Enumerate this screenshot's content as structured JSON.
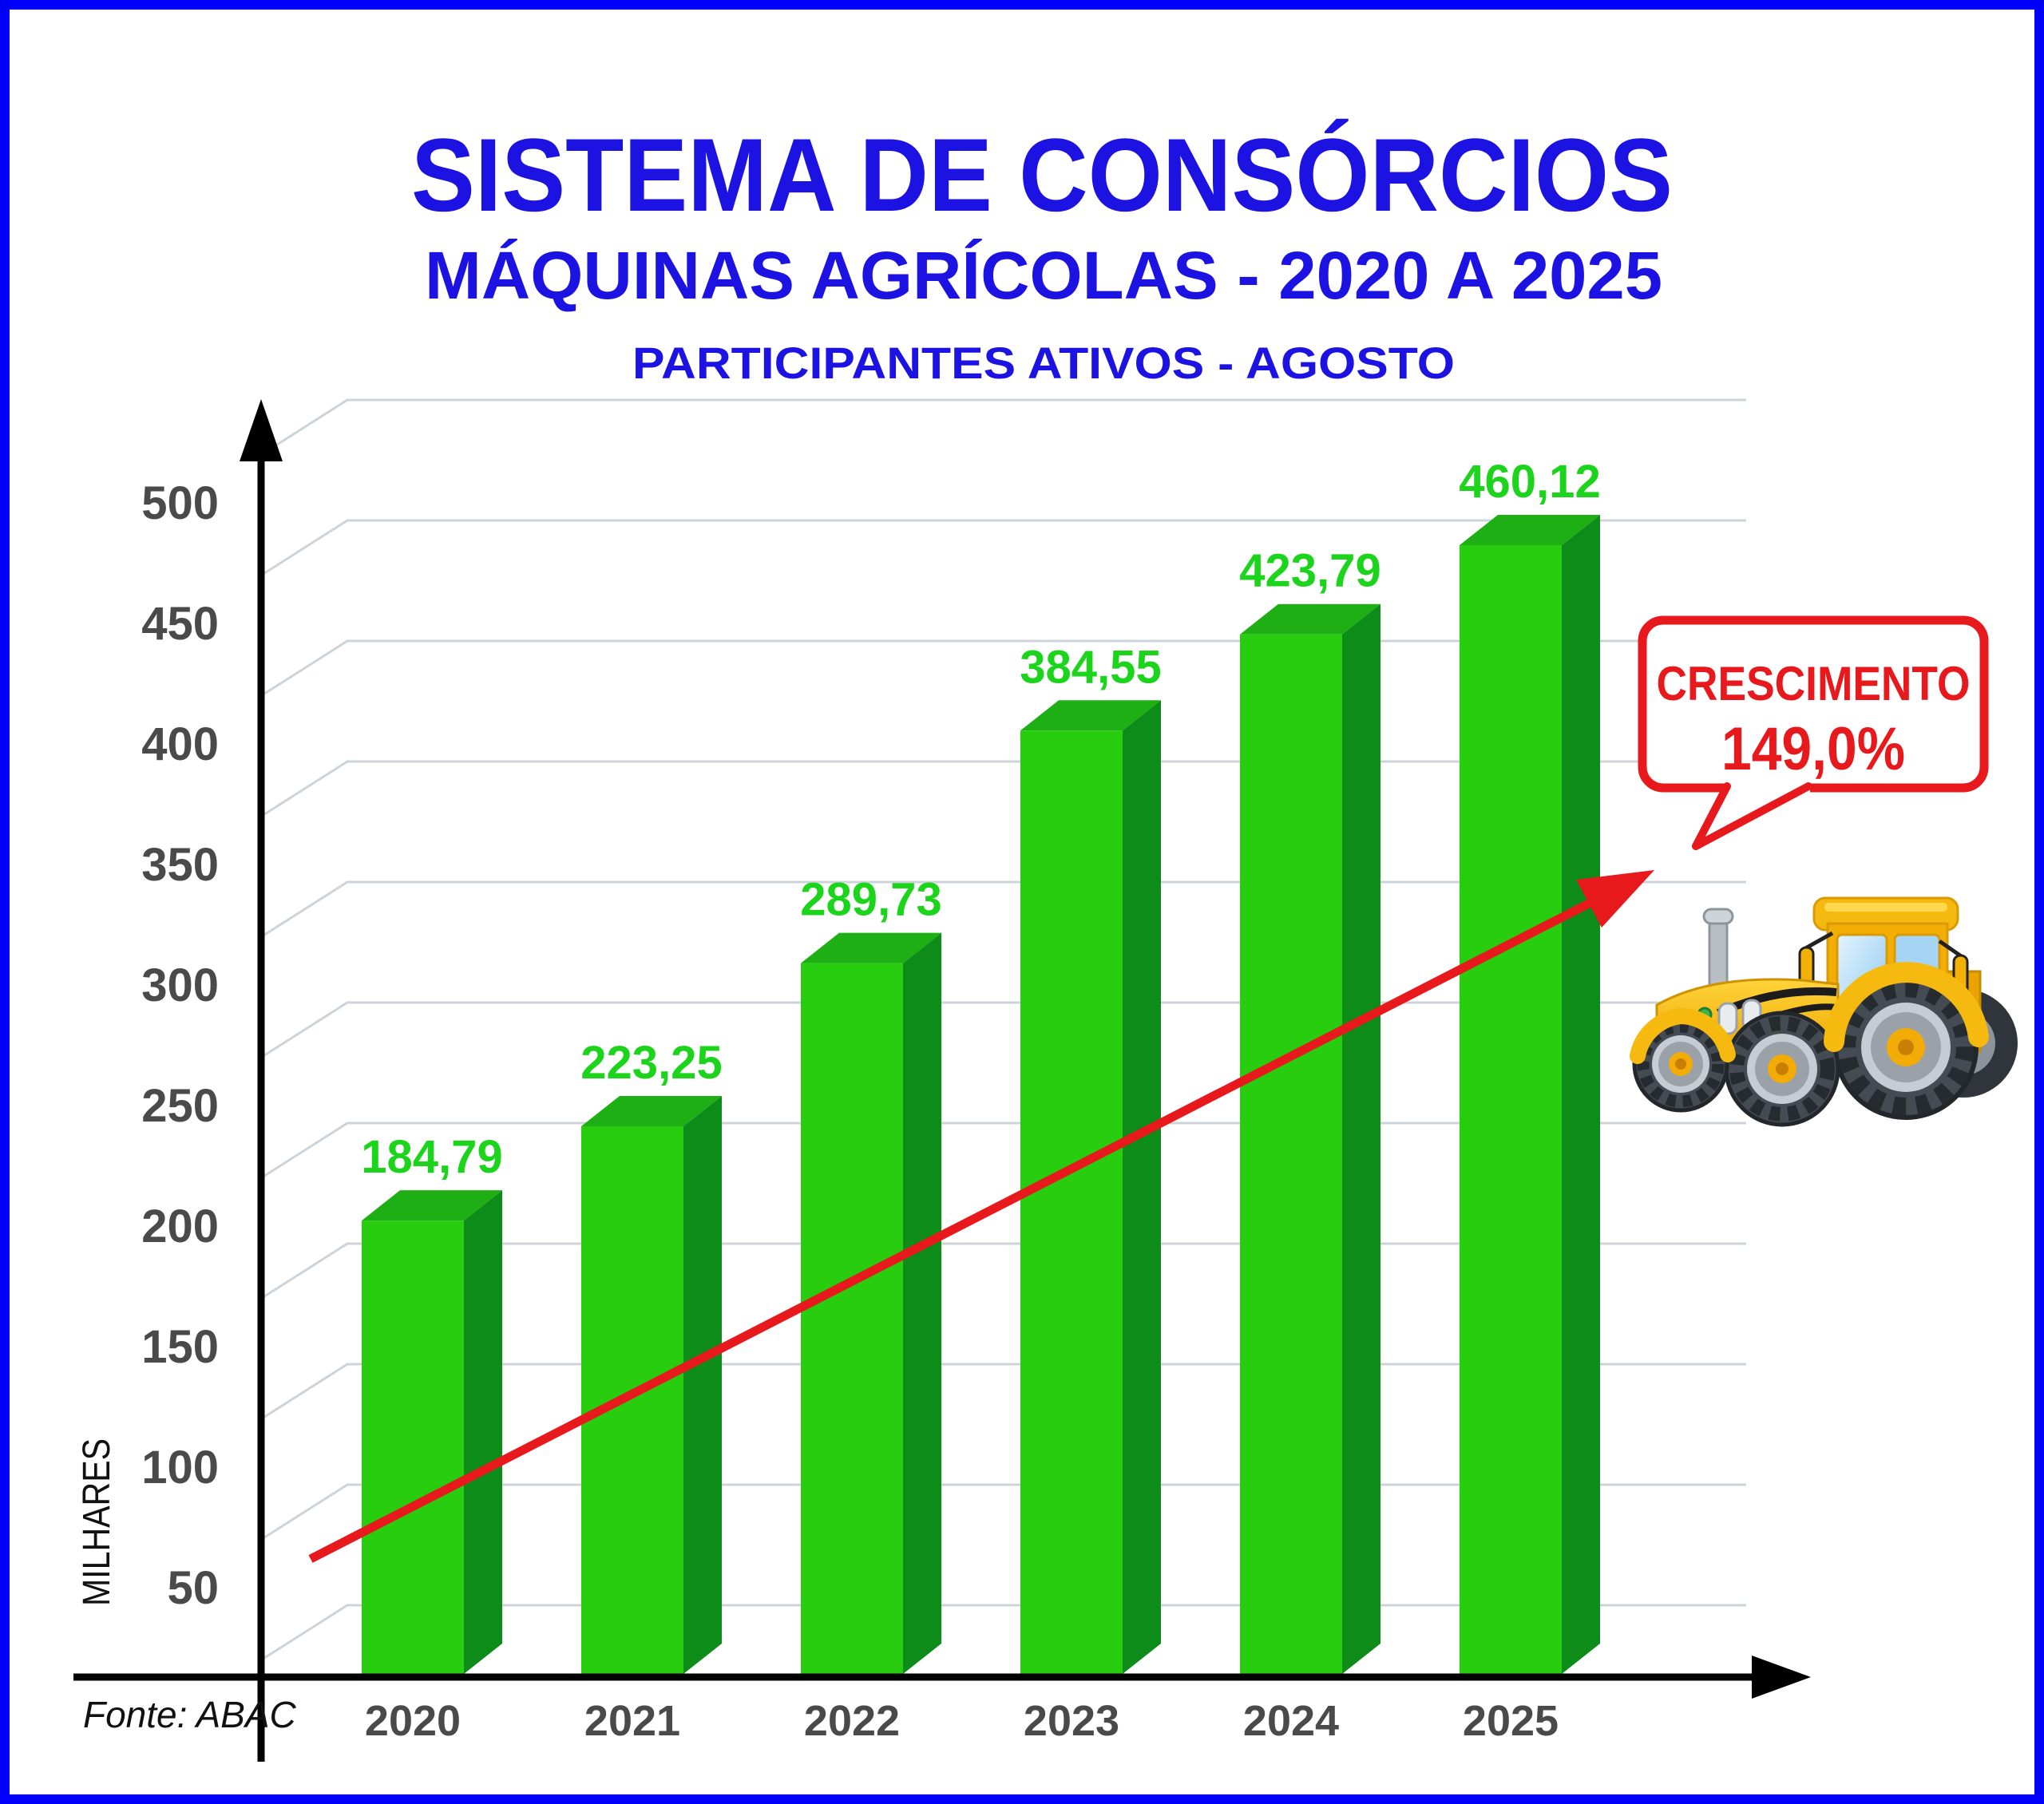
{
  "page": {
    "background": "#ffffff",
    "border_color": "#0101fb"
  },
  "header": {
    "title": "SISTEMA DE CONSÓRCIOS",
    "subtitle": "MÁQUINAS AGRÍCOLAS - 2020 A 2025",
    "subtitle2": "PARTICIPANTES ATIVOS - AGOSTO",
    "title_color": "#1c13e3"
  },
  "chart_data": {
    "type": "bar",
    "title": "SISTEMA DE CONSÓRCIOS",
    "subtitle": "MÁQUINAS AGRÍCOLAS - 2020 A 2025",
    "subtitle2": "PARTICIPANTES ATIVOS - AGOSTO",
    "categories": [
      "2020",
      "2021",
      "2022",
      "2023",
      "2024",
      "2025"
    ],
    "values": [
      184.79,
      223.25,
      289.73,
      384.55,
      423.79,
      460.12
    ],
    "value_labels": [
      "184,79",
      "223,25",
      "289,73",
      "384,55",
      "423,79",
      "460,12"
    ],
    "ylabel": "MILHARES",
    "ylim": [
      0,
      500
    ],
    "ytick_step": 50,
    "yticks": [
      "500",
      "450",
      "400",
      "350",
      "300",
      "250",
      "200",
      "150",
      "100",
      "50"
    ],
    "grid": true,
    "legend_position": "none",
    "style_3d": true,
    "annotation": {
      "line1": "CRESCIMENTO",
      "line2": "149,0%",
      "color": "#e8191c"
    },
    "colors": {
      "bar_front": "#28cd0f",
      "bar_top": "#1eaf14",
      "bar_side": "#0e8c19",
      "value_label_green": "#1dd41d",
      "axis_label_gray": "#4a4a4a",
      "trend_red": "#e8191c"
    }
  },
  "footer": {
    "source": "Fonte: ABAC"
  },
  "decorations": {
    "tractor_icon": "yellow-cartoon-tractor"
  }
}
